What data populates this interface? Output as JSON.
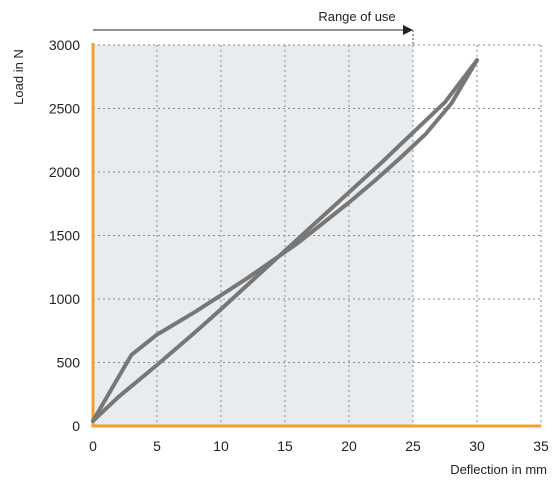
{
  "chart_data": {
    "type": "line",
    "title": "",
    "xlabel": "Deflection in mm",
    "ylabel": "Load in N",
    "xlim": [
      0,
      35
    ],
    "ylim": [
      0,
      3000
    ],
    "x_ticks": [
      "0",
      "5",
      "10",
      "15",
      "20",
      "25",
      "30",
      "35"
    ],
    "y_ticks": [
      "0",
      "500",
      "1000",
      "1500",
      "2000",
      "2500",
      "3000"
    ],
    "grid": true,
    "range_of_use": {
      "label": "Range of use",
      "from": 0,
      "to": 25
    },
    "series": [
      {
        "x": [
          0,
          2,
          5,
          8,
          10,
          12.5,
          15,
          17.5,
          20,
          22.5,
          25,
          27.5,
          30
        ],
        "y": [
          40,
          230,
          480,
          740,
          920,
          1150,
          1380,
          1610,
          1840,
          2070,
          2310,
          2550,
          2880
        ]
      },
      {
        "x": [
          30,
          28,
          26,
          24,
          22,
          20,
          18,
          16,
          14,
          12,
          10,
          8,
          5,
          3,
          0
        ],
        "y": [
          2880,
          2540,
          2300,
          2110,
          1930,
          1760,
          1600,
          1440,
          1300,
          1160,
          1030,
          900,
          720,
          560,
          40
        ]
      }
    ]
  },
  "colors": {
    "frame": "#f0a030",
    "shade": "#e8ecef",
    "grid": "#888888",
    "line": "#777777",
    "text": "#222222"
  }
}
